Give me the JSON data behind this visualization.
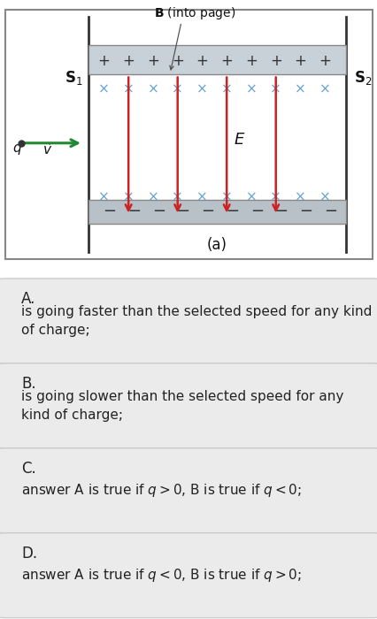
{
  "bg_color": "#ffffff",
  "plate_plus_color": "#c8d0d8",
  "plate_minus_color": "#b8c0c8",
  "arrow_color": "#cc2222",
  "B_label": "B (into page)",
  "S1_label": "S$_1$",
  "S2_label": "S$_2$",
  "E_label": "E",
  "q_label": "q",
  "v_label": "$\\vec{v}$",
  "caption": "(a)",
  "options": [
    {
      "letter": "A.",
      "text": "is going faster than the selected speed for any kind\nof charge;"
    },
    {
      "letter": "B.",
      "text": "is going slower than the selected speed for any\nkind of charge;"
    },
    {
      "letter": "C.",
      "text": "answer A is true if $q > 0$, B is true if $q < 0$;"
    },
    {
      "letter": "D.",
      "text": "answer A is true if $q < 0$, B is true if $q > 0$;"
    }
  ],
  "option_bg": "#ebebeb",
  "option_border": "#cccccc",
  "text_color": "#222222",
  "option_letter_fontsize": 12,
  "option_text_fontsize": 11
}
